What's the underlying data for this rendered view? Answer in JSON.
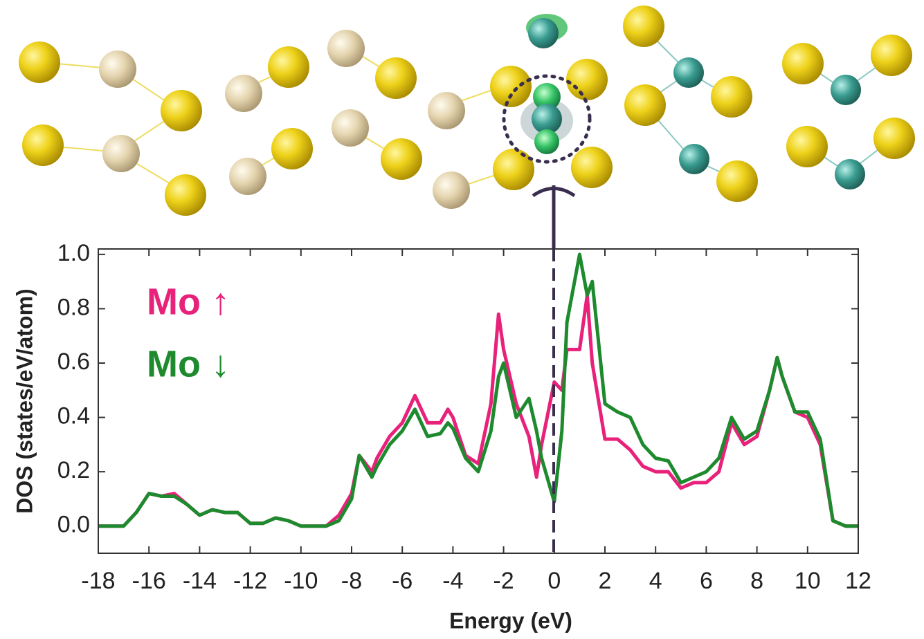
{
  "chart_data": {
    "type": "line",
    "xlabel": "Energy (eV)",
    "ylabel": "DOS (states/eV/atom)",
    "x": [
      -18,
      -17,
      -16.5,
      -16,
      -15.5,
      -15,
      -14.5,
      -14,
      -13.5,
      -13,
      -12.5,
      -12,
      -11.5,
      -11,
      -10.5,
      -10,
      -9,
      -8.5,
      -8,
      -7.7,
      -7.2,
      -7,
      -6.5,
      -6,
      -5.5,
      -5,
      -4.5,
      -4.2,
      -4,
      -3.5,
      -3,
      -2.5,
      -2.2,
      -2,
      -1.5,
      -1,
      -0.7,
      -0.5,
      0,
      0.3,
      0.5,
      1,
      1.3,
      1.5,
      2,
      2.5,
      3,
      3.5,
      4,
      4.5,
      5,
      5.5,
      6,
      6.5,
      7,
      7.5,
      8,
      8.5,
      8.8,
      9,
      9.5,
      10,
      10.5,
      11,
      11.5,
      12
    ],
    "series": [
      {
        "name": "Mo ↑",
        "color": "#e8217a",
        "values": [
          0,
          0,
          0.05,
          0.12,
          0.11,
          0.12,
          0.08,
          0.04,
          0.06,
          0.05,
          0.05,
          0.01,
          0.01,
          0.03,
          0.02,
          0,
          0,
          0.04,
          0.12,
          0.26,
          0.2,
          0.25,
          0.33,
          0.38,
          0.48,
          0.38,
          0.38,
          0.43,
          0.4,
          0.26,
          0.23,
          0.45,
          0.78,
          0.65,
          0.45,
          0.33,
          0.18,
          0.3,
          0.53,
          0.5,
          0.65,
          0.65,
          0.85,
          0.6,
          0.32,
          0.32,
          0.28,
          0.22,
          0.2,
          0.2,
          0.14,
          0.16,
          0.16,
          0.2,
          0.38,
          0.3,
          0.33,
          0.5,
          0.62,
          0.55,
          0.42,
          0.4,
          0.3,
          0.02,
          0,
          0
        ]
      },
      {
        "name": "Mo ↓",
        "color": "#1e8a2e",
        "values": [
          0,
          0,
          0.05,
          0.12,
          0.11,
          0.11,
          0.08,
          0.04,
          0.06,
          0.05,
          0.05,
          0.01,
          0.01,
          0.03,
          0.02,
          0,
          0,
          0.02,
          0.1,
          0.26,
          0.18,
          0.22,
          0.3,
          0.35,
          0.43,
          0.33,
          0.34,
          0.38,
          0.36,
          0.25,
          0.2,
          0.35,
          0.55,
          0.6,
          0.4,
          0.47,
          0.35,
          0.25,
          0.09,
          0.35,
          0.75,
          1.0,
          0.85,
          0.9,
          0.45,
          0.42,
          0.4,
          0.3,
          0.25,
          0.24,
          0.16,
          0.18,
          0.2,
          0.25,
          0.4,
          0.32,
          0.35,
          0.5,
          0.62,
          0.55,
          0.42,
          0.42,
          0.32,
          0.02,
          0,
          0
        ]
      }
    ],
    "xlim": [
      -18,
      12
    ],
    "xticks": [
      -18,
      -16,
      -14,
      -12,
      -10,
      -8,
      -6,
      -4,
      -2,
      0,
      2,
      4,
      6,
      8,
      10,
      12
    ],
    "ylim": [
      -0.1,
      1.02
    ],
    "yticks": [
      {
        "value": 0,
        "label": "0.0"
      },
      0.2,
      0.4,
      0.6,
      0.8,
      {
        "value": 1,
        "label": "1.0"
      }
    ],
    "legend": "upper left"
  }
}
